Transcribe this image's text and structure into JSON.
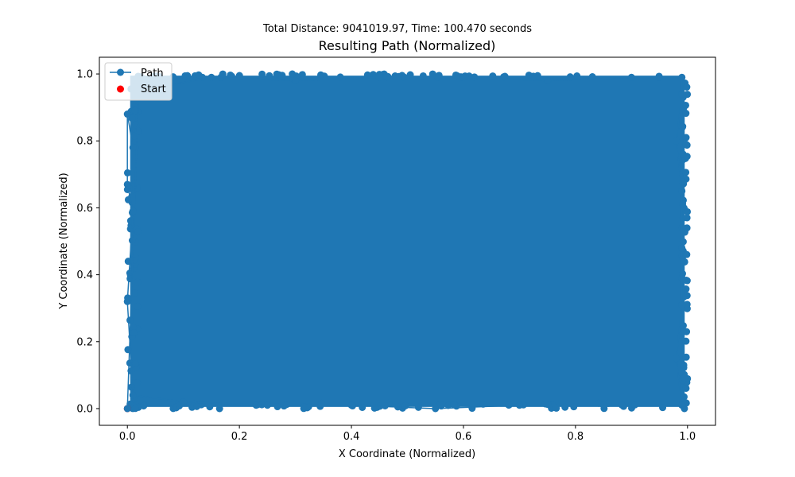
{
  "chart_data": {
    "type": "scatter",
    "suptitle": "Total Distance: 9041019.97, Time: 100.470 seconds",
    "title": "Resulting Path (Normalized)",
    "xlabel": "X Coordinate (Normalized)",
    "ylabel": "Y Coordinate (Normalized)",
    "xlim": [
      -0.05,
      1.05
    ],
    "ylim": [
      -0.05,
      1.05
    ],
    "xticks": [
      {
        "value": 0.0,
        "label": "0.0"
      },
      {
        "value": 0.2,
        "label": "0.2"
      },
      {
        "value": 0.4,
        "label": "0.4"
      },
      {
        "value": 0.6,
        "label": "0.6"
      },
      {
        "value": 0.8,
        "label": "0.8"
      },
      {
        "value": 1.0,
        "label": "1.0"
      }
    ],
    "yticks": [
      {
        "value": 0.0,
        "label": "0.0"
      },
      {
        "value": 0.2,
        "label": "0.2"
      },
      {
        "value": 0.4,
        "label": "0.4"
      },
      {
        "value": 0.6,
        "label": "0.6"
      },
      {
        "value": 0.8,
        "label": "0.8"
      },
      {
        "value": 1.0,
        "label": "1.0"
      }
    ],
    "grid": false,
    "legend": {
      "placement": "upper-left",
      "entries": [
        {
          "label": "Path",
          "color": "#1f77b4",
          "marker": "circle-line"
        },
        {
          "label": "Start",
          "color": "#ff0000",
          "marker": "circle"
        }
      ]
    },
    "series": [
      {
        "name": "Path",
        "color": "#1f77b4",
        "points": [
          [
            0.0,
            0.0
          ],
          [
            0.02,
            0.95
          ],
          [
            0.15,
            0.99
          ],
          [
            0.3,
            0.98
          ],
          [
            0.45,
            0.99
          ],
          [
            0.6,
            0.99
          ],
          [
            0.75,
            0.98
          ],
          [
            0.9,
            0.99
          ],
          [
            0.99,
            0.99
          ],
          [
            0.99,
            0.94
          ],
          [
            0.98,
            0.8
          ],
          [
            0.99,
            0.65
          ],
          [
            0.99,
            0.48
          ],
          [
            0.99,
            0.31
          ],
          [
            0.98,
            0.15
          ],
          [
            0.99,
            0.01
          ],
          [
            0.85,
            0.01
          ],
          [
            0.7,
            0.01
          ],
          [
            0.55,
            0.0
          ],
          [
            0.4,
            0.01
          ],
          [
            0.25,
            0.01
          ],
          [
            0.1,
            0.02
          ],
          [
            0.01,
            0.04
          ],
          [
            0.0,
            0.32
          ],
          [
            0.01,
            0.59
          ],
          [
            0.0,
            0.67
          ],
          [
            0.0,
            0.88
          ],
          [
            0.01,
            0.78
          ]
        ]
      },
      {
        "name": "Start",
        "color": "#ff0000",
        "points": [
          [
            0.0,
            0.0
          ]
        ]
      }
    ]
  }
}
